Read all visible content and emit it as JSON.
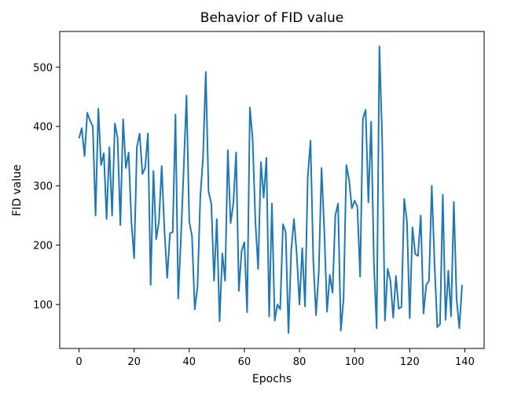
{
  "chart_data": {
    "type": "line",
    "title": "Behavior of FID value",
    "xlabel": "Epochs",
    "ylabel": "FID value",
    "xlim": [
      -7,
      147
    ],
    "ylim": [
      26,
      560
    ],
    "xticks": [
      0,
      20,
      40,
      60,
      80,
      100,
      120,
      140
    ],
    "yticks": [
      100,
      200,
      300,
      400,
      500
    ],
    "grid": false,
    "line_color": "#1f77b4",
    "series": [
      {
        "x": [
          0,
          1,
          2,
          3,
          4,
          5,
          6,
          7,
          8,
          9,
          10,
          11,
          12,
          13,
          14,
          15,
          16,
          17,
          18,
          19,
          20,
          21,
          22,
          23,
          24,
          25,
          26,
          27,
          28,
          29,
          30,
          31,
          32,
          33,
          34,
          35,
          36,
          37,
          38,
          39,
          40,
          41,
          42,
          43,
          44,
          45,
          46,
          47,
          48,
          49,
          50,
          51,
          52,
          53,
          54,
          55,
          56,
          57,
          58,
          59,
          60,
          61,
          62,
          63,
          64,
          65,
          66,
          67,
          68,
          69,
          70,
          71,
          72,
          73,
          74,
          75,
          76,
          77,
          78,
          79,
          80,
          81,
          82,
          83,
          84,
          85,
          86,
          87,
          88,
          89,
          90,
          91,
          92,
          93,
          94,
          95,
          96,
          97,
          98,
          99,
          100,
          101,
          102,
          103,
          104,
          105,
          106,
          107,
          108,
          109,
          110,
          111,
          112,
          113,
          114,
          115,
          116,
          117,
          118,
          119,
          120,
          121,
          122,
          123,
          124,
          125,
          126,
          127,
          128,
          129,
          130,
          131,
          132,
          133,
          134,
          135,
          136,
          137,
          138,
          139
        ],
        "y": [
          380,
          397,
          350,
          423,
          410,
          400,
          250,
          430,
          335,
          355,
          244,
          365,
          250,
          405,
          380,
          234,
          412,
          330,
          356,
          240,
          178,
          365,
          388,
          320,
          330,
          388,
          133,
          325,
          210,
          240,
          333,
          225,
          145,
          220,
          222,
          420,
          110,
          215,
          330,
          452,
          240,
          215,
          92,
          130,
          280,
          348,
          492,
          290,
          270,
          140,
          244,
          72,
          186,
          140,
          360,
          237,
          270,
          356,
          123,
          190,
          205,
          87,
          432,
          378,
          240,
          160,
          340,
          280,
          347,
          80,
          270,
          73,
          100,
          92,
          235,
          222,
          52,
          192,
          244,
          185,
          100,
          195,
          97,
          315,
          376,
          175,
          82,
          155,
          330,
          225,
          88,
          150,
          120,
          250,
          270,
          56,
          110,
          335,
          310,
          262,
          275,
          265,
          147,
          413,
          428,
          272,
          408,
          170,
          60,
          535,
          380,
          73,
          160,
          140,
          78,
          148,
          93,
          96,
          278,
          240,
          77,
          230,
          185,
          182,
          250,
          85,
          133,
          140,
          300,
          170,
          62,
          67,
          285,
          74,
          157,
          80,
          273,
          110,
          60,
          133
        ]
      }
    ]
  }
}
